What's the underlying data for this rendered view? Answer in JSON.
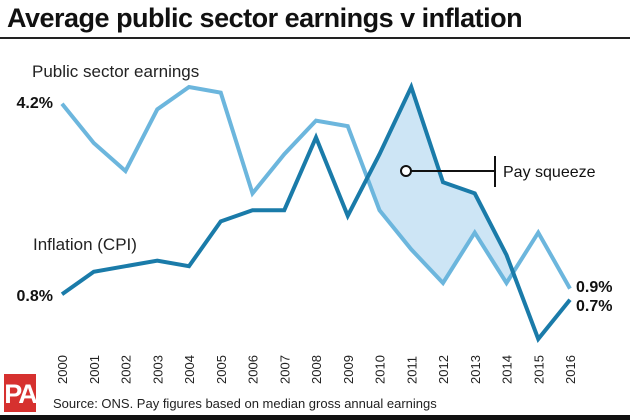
{
  "title": "Average public sector earnings v inflation",
  "source": "Source: ONS. Pay figures based on median gross annual earnings",
  "logo": "PA",
  "chart_data": {
    "type": "line",
    "title": "Average public sector earnings v inflation",
    "x": [
      "2000",
      "2001",
      "2002",
      "2003",
      "2004",
      "2005",
      "2006",
      "2007",
      "2008",
      "2009",
      "2010",
      "2011",
      "2012",
      "2013",
      "2014",
      "2015",
      "2016"
    ],
    "series": [
      {
        "name": "Public sector earnings",
        "color": "#6cb6dd",
        "values": [
          4.2,
          3.5,
          3.0,
          4.1,
          4.5,
          4.4,
          2.6,
          3.3,
          3.9,
          3.8,
          2.3,
          1.6,
          1.0,
          1.9,
          1.0,
          1.9,
          0.9
        ],
        "start_label": "4.2%",
        "end_label": "0.9%"
      },
      {
        "name": "Inflation (CPI)",
        "color": "#1a7ba9",
        "values": [
          0.8,
          1.2,
          1.3,
          1.4,
          1.3,
          2.1,
          2.3,
          2.3,
          3.6,
          2.2,
          3.3,
          4.5,
          2.8,
          2.6,
          1.5,
          0.0,
          0.7
        ],
        "start_label": "0.8%",
        "end_label": "0.7%"
      }
    ],
    "shade_color": "#cde5f5",
    "annotation": "Pay squeeze",
    "grid": false,
    "legend": "inline labels"
  }
}
